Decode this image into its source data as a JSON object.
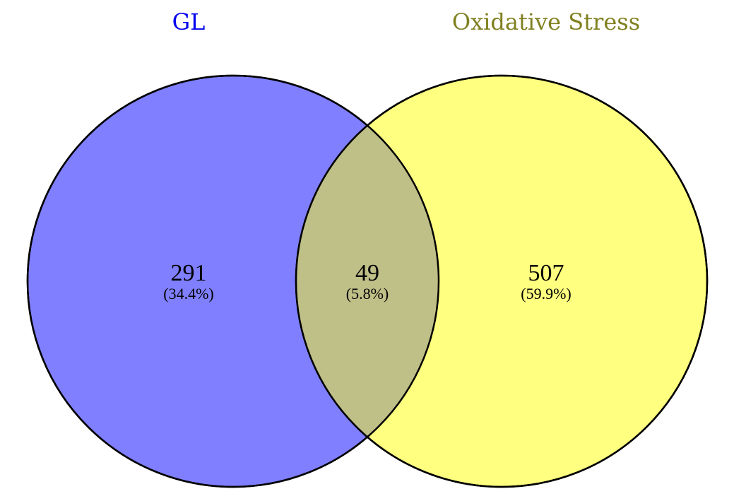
{
  "colors": {
    "set_a_fill": "#7f7fff",
    "set_b_fill": "#ffff80",
    "overlap_fill": "#bfbf88",
    "set_a_title": "#0000ee",
    "set_b_title": "#808020",
    "outline": "#000000"
  },
  "sets": [
    {
      "name": "GL"
    },
    {
      "name": "Oxidative Stress"
    }
  ],
  "regions": {
    "only_a": {
      "count": "291",
      "percent": "(34.4%)"
    },
    "both": {
      "count": "49",
      "percent": "(5.8%)"
    },
    "only_b": {
      "count": "507",
      "percent": "(59.9%)"
    }
  }
}
